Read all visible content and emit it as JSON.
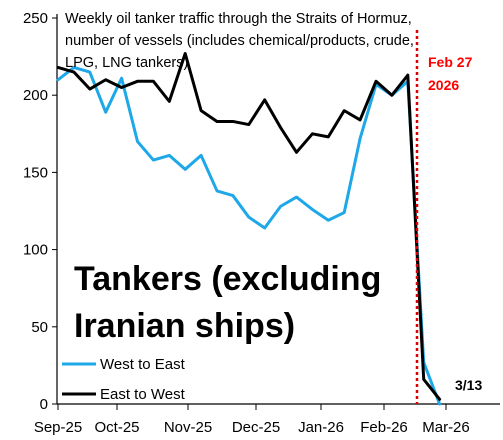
{
  "chart_data": {
    "type": "line",
    "title_lines": [
      "Weekly oil tanker traffic through the Straits of Hormuz,",
      "number of vessels (includes chemical/products, crude,",
      "LPG, LNG tankers)"
    ],
    "overlay_label_lines": [
      "Tankers (excluding",
      "Iranian ships)"
    ],
    "ylim": [
      0,
      250
    ],
    "y_ticks": [
      "0",
      "50",
      "100",
      "150",
      "200",
      "250"
    ],
    "x_tick_labels": [
      "Sep-25",
      "Oct-25",
      "Nov-25",
      "Dec-25",
      "Jan-26",
      "Feb-26",
      "Mar-26"
    ],
    "grid": false,
    "legend_position": "bottom-left",
    "series": [
      {
        "name": "West to East",
        "color": "#1ea8e8",
        "values": [
          210,
          218,
          215,
          189,
          211,
          170,
          158,
          161,
          152,
          161,
          138,
          135,
          121,
          114,
          128,
          134,
          126,
          119,
          124,
          172,
          207,
          200,
          209,
          27,
          0
        ]
      },
      {
        "name": "East to West",
        "color": "#000000",
        "values": [
          218,
          215,
          204,
          210,
          205,
          209,
          209,
          196,
          227,
          190,
          183,
          183,
          181,
          197,
          179,
          163,
          175,
          173,
          190,
          184,
          209,
          200,
          213,
          16,
          3
        ]
      }
    ],
    "annotations": {
      "event_date_lines": [
        "Feb 27",
        "2026"
      ],
      "end_label": "3/13",
      "event_line_color": "#dd0000"
    }
  }
}
